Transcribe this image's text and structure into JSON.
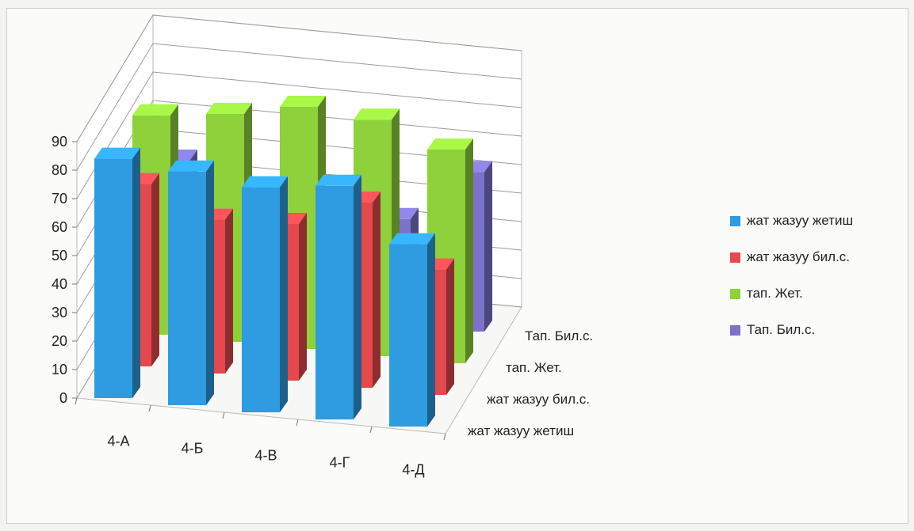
{
  "chart_data": {
    "type": "bar",
    "subtype": "3d-column",
    "categories": [
      "4-А",
      "4-Б",
      "4-В",
      "4-Г",
      "4-Д"
    ],
    "series": [
      {
        "name": "жат жазуу жетиш",
        "color": "#2f9be0",
        "values": [
          84,
          82,
          79,
          82,
          64
        ]
      },
      {
        "name": "жат жазуу бил.с.",
        "color": "#e5484d",
        "values": [
          64,
          54,
          55,
          65,
          44
        ]
      },
      {
        "name": "тап. Жет.",
        "color": "#8fd13b",
        "values": [
          77,
          80,
          85,
          83,
          75
        ]
      },
      {
        "name": "Тап. Бил.с.",
        "color": "#7b72c9",
        "values": [
          50,
          39,
          22,
          37,
          56
        ]
      }
    ],
    "y_ticks": [
      "0",
      "10",
      "20",
      "30",
      "40",
      "50",
      "60",
      "70",
      "80",
      "90"
    ],
    "ylim": [
      0,
      90
    ],
    "depth_labels": [
      "жат жазуу жетиш",
      "жат жазуу бил.с.",
      "тап. Жет.",
      "Тап. Бил.с."
    ],
    "grid": true,
    "legend_position": "right"
  }
}
